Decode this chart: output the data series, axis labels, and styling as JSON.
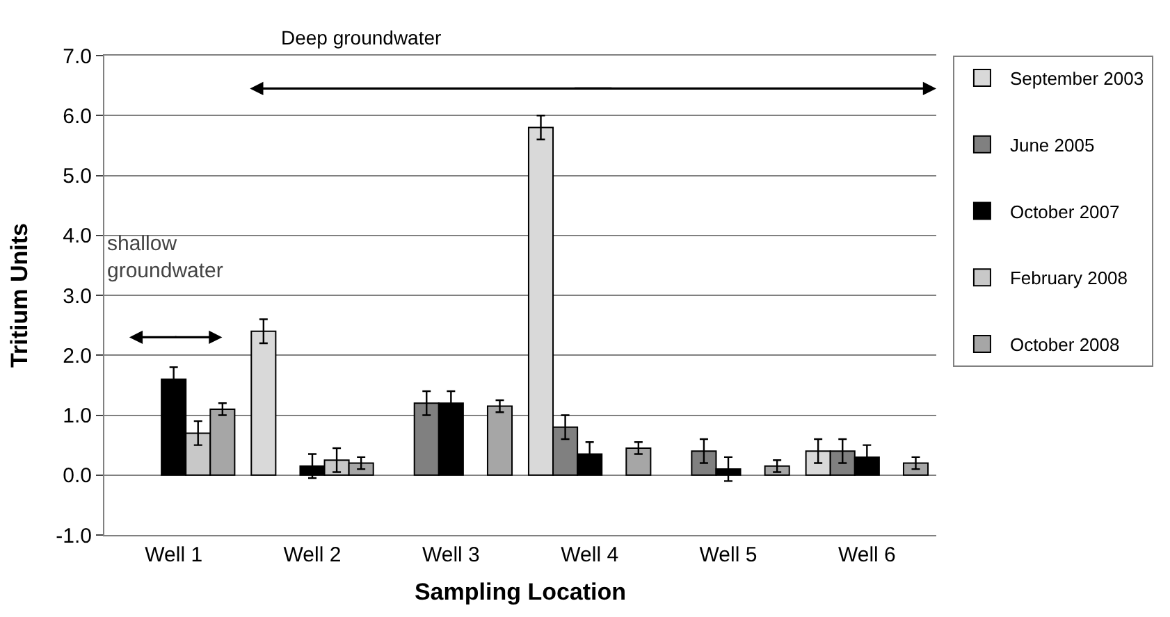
{
  "chart_data": {
    "type": "bar",
    "xlabel": "Sampling Location",
    "ylabel": "Tritium Units",
    "categories": [
      "Well 1",
      "Well 2",
      "Well 3",
      "Well 4",
      "Well 5",
      "Well 6"
    ],
    "series": [
      {
        "name": "September 2003",
        "color": "#d9d9d9",
        "values": [
          null,
          2.4,
          null,
          5.8,
          null,
          0.4
        ],
        "errors": [
          null,
          0.2,
          null,
          0.2,
          null,
          0.2
        ]
      },
      {
        "name": "June 2005",
        "color": "#808080",
        "values": [
          null,
          null,
          1.2,
          0.8,
          0.4,
          0.4
        ],
        "errors": [
          null,
          null,
          0.2,
          0.2,
          0.2,
          0.2
        ]
      },
      {
        "name": "October 2007",
        "color": "#000000",
        "values": [
          1.6,
          0.15,
          1.2,
          0.35,
          0.1,
          0.3
        ],
        "errors": [
          0.2,
          0.2,
          0.2,
          0.2,
          0.2,
          0.2
        ]
      },
      {
        "name": "February 2008",
        "color": "#c8c8c8",
        "values": [
          0.7,
          0.25,
          null,
          null,
          null,
          null
        ],
        "errors": [
          0.2,
          0.2,
          null,
          null,
          null,
          null
        ]
      },
      {
        "name": "October 2008",
        "color": "#a6a6a6",
        "values": [
          1.1,
          0.2,
          1.15,
          0.45,
          0.15,
          0.2
        ],
        "errors": [
          0.1,
          0.1,
          0.1,
          0.1,
          0.1,
          0.1
        ]
      }
    ],
    "ylim": [
      -1,
      7
    ],
    "yticks": [
      {
        "value": -1,
        "label": "-1.0"
      },
      {
        "value": 0,
        "label": "0.0"
      },
      {
        "value": 1,
        "label": "1.0"
      },
      {
        "value": 2,
        "label": "2.0"
      },
      {
        "value": 3,
        "label": "3.0"
      },
      {
        "value": 4,
        "label": "4.0"
      },
      {
        "value": 5,
        "label": "5.0"
      },
      {
        "value": 6,
        "label": "6.0"
      },
      {
        "value": 7,
        "label": "7.0"
      }
    ],
    "grid": "y",
    "legend": "right",
    "annotations": [
      "Deep groundwater",
      "shallow\ngroundwater"
    ]
  }
}
